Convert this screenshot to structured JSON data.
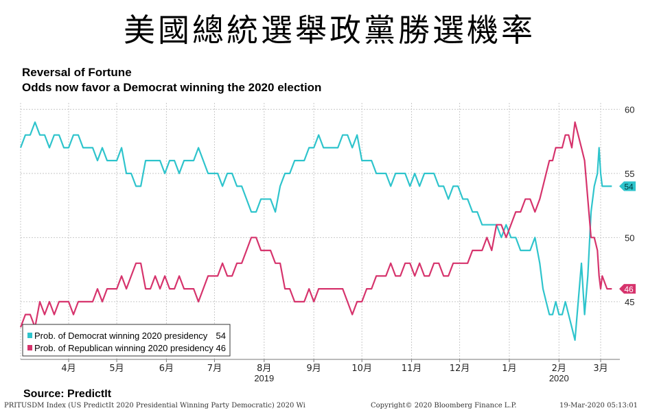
{
  "banner": {
    "title": "美國總統選舉政黨勝選機率"
  },
  "source": "Source: PredictIt",
  "footer": {
    "index": "PRITUSDM Index (US PredictIt 2020 Presidential Winning Party Democratic) 2020 Wi",
    "copyright": "Copyright© 2020 Bloomberg Finance L.P.",
    "timestamp": "19-Mar-2020 05:13:01"
  },
  "colors": {
    "democrat": "#2ec4cc",
    "republican": "#d6336c",
    "grid": "#c8c8c8"
  },
  "chart_data": {
    "type": "line",
    "title": "Reversal of Fortune",
    "subtitle": "Odds now favor a Democrat winning the 2020 election",
    "xlabel": "",
    "ylabel": "",
    "ylim": [
      40.5,
      60.5
    ],
    "y_ticks": [
      45,
      50,
      55,
      60
    ],
    "x_range": [
      "2019-03-16",
      "2020-03-24"
    ],
    "month_ticks": [
      {
        "date": "2019-04-15",
        "label": "4月"
      },
      {
        "date": "2019-05-15",
        "label": "5月"
      },
      {
        "date": "2019-06-15",
        "label": "6月"
      },
      {
        "date": "2019-07-15",
        "label": "7月"
      },
      {
        "date": "2019-08-15",
        "label": "8月"
      },
      {
        "date": "2019-09-15",
        "label": "9月"
      },
      {
        "date": "2019-10-15",
        "label": "10月"
      },
      {
        "date": "2019-11-15",
        "label": "11月"
      },
      {
        "date": "2019-12-15",
        "label": "12月"
      },
      {
        "date": "2020-01-15",
        "label": "1月"
      },
      {
        "date": "2020-02-15",
        "label": "2月"
      },
      {
        "date": "2020-03-12",
        "label": "3月"
      }
    ],
    "year_ticks": [
      {
        "date": "2019-08-15",
        "label": "2019"
      },
      {
        "date": "2020-02-15",
        "label": "2020"
      }
    ],
    "gridlines": [
      "2019-03-16",
      "2019-04-15",
      "2019-05-15",
      "2019-06-15",
      "2019-07-15",
      "2019-08-15",
      "2019-09-15",
      "2019-10-15",
      "2019-11-15",
      "2019-12-15",
      "2020-01-15",
      "2020-02-15",
      "2020-03-12"
    ],
    "series": [
      {
        "name": "Prob. of Democrat winning 2020 presidency",
        "last_value": "54",
        "color": "#2ec4cc",
        "points": [
          [
            "2019-03-16",
            57
          ],
          [
            "2019-03-19",
            58
          ],
          [
            "2019-03-22",
            58
          ],
          [
            "2019-03-25",
            59
          ],
          [
            "2019-03-28",
            58
          ],
          [
            "2019-03-31",
            58
          ],
          [
            "2019-04-03",
            57
          ],
          [
            "2019-04-06",
            58
          ],
          [
            "2019-04-09",
            58
          ],
          [
            "2019-04-12",
            57
          ],
          [
            "2019-04-15",
            57
          ],
          [
            "2019-04-18",
            58
          ],
          [
            "2019-04-21",
            58
          ],
          [
            "2019-04-24",
            57
          ],
          [
            "2019-04-27",
            57
          ],
          [
            "2019-04-30",
            57
          ],
          [
            "2019-05-03",
            56
          ],
          [
            "2019-05-06",
            57
          ],
          [
            "2019-05-09",
            56
          ],
          [
            "2019-05-12",
            56
          ],
          [
            "2019-05-15",
            56
          ],
          [
            "2019-05-18",
            57
          ],
          [
            "2019-05-21",
            55
          ],
          [
            "2019-05-24",
            55
          ],
          [
            "2019-05-27",
            54
          ],
          [
            "2019-05-30",
            54
          ],
          [
            "2019-06-02",
            56
          ],
          [
            "2019-06-05",
            56
          ],
          [
            "2019-06-08",
            56
          ],
          [
            "2019-06-11",
            56
          ],
          [
            "2019-06-14",
            55
          ],
          [
            "2019-06-17",
            56
          ],
          [
            "2019-06-20",
            56
          ],
          [
            "2019-06-23",
            55
          ],
          [
            "2019-06-26",
            56
          ],
          [
            "2019-06-29",
            56
          ],
          [
            "2019-07-02",
            56
          ],
          [
            "2019-07-05",
            57
          ],
          [
            "2019-07-08",
            56
          ],
          [
            "2019-07-11",
            55
          ],
          [
            "2019-07-14",
            55
          ],
          [
            "2019-07-17",
            55
          ],
          [
            "2019-07-20",
            54
          ],
          [
            "2019-07-23",
            55
          ],
          [
            "2019-07-26",
            55
          ],
          [
            "2019-07-29",
            54
          ],
          [
            "2019-08-01",
            54
          ],
          [
            "2019-08-04",
            53
          ],
          [
            "2019-08-07",
            52
          ],
          [
            "2019-08-10",
            52
          ],
          [
            "2019-08-13",
            53
          ],
          [
            "2019-08-16",
            53
          ],
          [
            "2019-08-19",
            53
          ],
          [
            "2019-08-22",
            52
          ],
          [
            "2019-08-25",
            54
          ],
          [
            "2019-08-28",
            55
          ],
          [
            "2019-08-31",
            55
          ],
          [
            "2019-09-03",
            56
          ],
          [
            "2019-09-06",
            56
          ],
          [
            "2019-09-09",
            56
          ],
          [
            "2019-09-12",
            57
          ],
          [
            "2019-09-15",
            57
          ],
          [
            "2019-09-18",
            58
          ],
          [
            "2019-09-21",
            57
          ],
          [
            "2019-09-24",
            57
          ],
          [
            "2019-09-27",
            57
          ],
          [
            "2019-09-30",
            57
          ],
          [
            "2019-10-03",
            58
          ],
          [
            "2019-10-06",
            58
          ],
          [
            "2019-10-09",
            57
          ],
          [
            "2019-10-12",
            58
          ],
          [
            "2019-10-15",
            56
          ],
          [
            "2019-10-18",
            56
          ],
          [
            "2019-10-21",
            56
          ],
          [
            "2019-10-24",
            55
          ],
          [
            "2019-10-27",
            55
          ],
          [
            "2019-10-30",
            55
          ],
          [
            "2019-11-02",
            54
          ],
          [
            "2019-11-05",
            55
          ],
          [
            "2019-11-08",
            55
          ],
          [
            "2019-11-11",
            55
          ],
          [
            "2019-11-14",
            54
          ],
          [
            "2019-11-17",
            55
          ],
          [
            "2019-11-20",
            54
          ],
          [
            "2019-11-23",
            55
          ],
          [
            "2019-11-26",
            55
          ],
          [
            "2019-11-29",
            55
          ],
          [
            "2019-12-02",
            54
          ],
          [
            "2019-12-05",
            54
          ],
          [
            "2019-12-08",
            53
          ],
          [
            "2019-12-11",
            54
          ],
          [
            "2019-12-14",
            54
          ],
          [
            "2019-12-17",
            53
          ],
          [
            "2019-12-20",
            53
          ],
          [
            "2019-12-23",
            52
          ],
          [
            "2019-12-26",
            52
          ],
          [
            "2019-12-29",
            51
          ],
          [
            "2020-01-01",
            51
          ],
          [
            "2020-01-04",
            51
          ],
          [
            "2020-01-07",
            51
          ],
          [
            "2020-01-10",
            50
          ],
          [
            "2020-01-13",
            51
          ],
          [
            "2020-01-16",
            50
          ],
          [
            "2020-01-19",
            50
          ],
          [
            "2020-01-22",
            49
          ],
          [
            "2020-01-25",
            49
          ],
          [
            "2020-01-28",
            49
          ],
          [
            "2020-01-31",
            50
          ],
          [
            "2020-02-03",
            48
          ],
          [
            "2020-02-05",
            46
          ],
          [
            "2020-02-07",
            45
          ],
          [
            "2020-02-09",
            44
          ],
          [
            "2020-02-11",
            44
          ],
          [
            "2020-02-13",
            45
          ],
          [
            "2020-02-15",
            44
          ],
          [
            "2020-02-17",
            44
          ],
          [
            "2020-02-19",
            45
          ],
          [
            "2020-02-21",
            44
          ],
          [
            "2020-02-23",
            43
          ],
          [
            "2020-02-25",
            42
          ],
          [
            "2020-02-27",
            45
          ],
          [
            "2020-02-29",
            48
          ],
          [
            "2020-03-02",
            44
          ],
          [
            "2020-03-04",
            47
          ],
          [
            "2020-03-06",
            52
          ],
          [
            "2020-03-08",
            54
          ],
          [
            "2020-03-10",
            55
          ],
          [
            "2020-03-11",
            57
          ],
          [
            "2020-03-12",
            55
          ],
          [
            "2020-03-13",
            54
          ],
          [
            "2020-03-16",
            54
          ],
          [
            "2020-03-19",
            54
          ]
        ]
      },
      {
        "name": "Prob. of Republican winning 2020 presidency",
        "last_value": "46",
        "color": "#d6336c",
        "points": [
          [
            "2019-03-16",
            43
          ],
          [
            "2019-03-19",
            44
          ],
          [
            "2019-03-22",
            44
          ],
          [
            "2019-03-25",
            43
          ],
          [
            "2019-03-28",
            45
          ],
          [
            "2019-03-31",
            44
          ],
          [
            "2019-04-03",
            45
          ],
          [
            "2019-04-06",
            44
          ],
          [
            "2019-04-09",
            45
          ],
          [
            "2019-04-12",
            45
          ],
          [
            "2019-04-15",
            45
          ],
          [
            "2019-04-18",
            44
          ],
          [
            "2019-04-21",
            45
          ],
          [
            "2019-04-24",
            45
          ],
          [
            "2019-04-27",
            45
          ],
          [
            "2019-04-30",
            45
          ],
          [
            "2019-05-03",
            46
          ],
          [
            "2019-05-06",
            45
          ],
          [
            "2019-05-09",
            46
          ],
          [
            "2019-05-12",
            46
          ],
          [
            "2019-05-15",
            46
          ],
          [
            "2019-05-18",
            47
          ],
          [
            "2019-05-21",
            46
          ],
          [
            "2019-05-24",
            47
          ],
          [
            "2019-05-27",
            48
          ],
          [
            "2019-05-30",
            48
          ],
          [
            "2019-06-02",
            46
          ],
          [
            "2019-06-05",
            46
          ],
          [
            "2019-06-08",
            47
          ],
          [
            "2019-06-11",
            46
          ],
          [
            "2019-06-14",
            47
          ],
          [
            "2019-06-17",
            46
          ],
          [
            "2019-06-20",
            46
          ],
          [
            "2019-06-23",
            47
          ],
          [
            "2019-06-26",
            46
          ],
          [
            "2019-06-29",
            46
          ],
          [
            "2019-07-02",
            46
          ],
          [
            "2019-07-05",
            45
          ],
          [
            "2019-07-08",
            46
          ],
          [
            "2019-07-11",
            47
          ],
          [
            "2019-07-14",
            47
          ],
          [
            "2019-07-17",
            47
          ],
          [
            "2019-07-20",
            48
          ],
          [
            "2019-07-23",
            47
          ],
          [
            "2019-07-26",
            47
          ],
          [
            "2019-07-29",
            48
          ],
          [
            "2019-08-01",
            48
          ],
          [
            "2019-08-04",
            49
          ],
          [
            "2019-08-07",
            50
          ],
          [
            "2019-08-10",
            50
          ],
          [
            "2019-08-13",
            49
          ],
          [
            "2019-08-16",
            49
          ],
          [
            "2019-08-19",
            49
          ],
          [
            "2019-08-22",
            48
          ],
          [
            "2019-08-25",
            48
          ],
          [
            "2019-08-28",
            46
          ],
          [
            "2019-08-31",
            46
          ],
          [
            "2019-09-03",
            45
          ],
          [
            "2019-09-06",
            45
          ],
          [
            "2019-09-09",
            45
          ],
          [
            "2019-09-12",
            46
          ],
          [
            "2019-09-15",
            45
          ],
          [
            "2019-09-18",
            46
          ],
          [
            "2019-09-21",
            46
          ],
          [
            "2019-09-24",
            46
          ],
          [
            "2019-09-27",
            46
          ],
          [
            "2019-09-30",
            46
          ],
          [
            "2019-10-03",
            46
          ],
          [
            "2019-10-06",
            45
          ],
          [
            "2019-10-09",
            44
          ],
          [
            "2019-10-12",
            45
          ],
          [
            "2019-10-15",
            45
          ],
          [
            "2019-10-18",
            46
          ],
          [
            "2019-10-21",
            46
          ],
          [
            "2019-10-24",
            47
          ],
          [
            "2019-10-27",
            47
          ],
          [
            "2019-10-30",
            47
          ],
          [
            "2019-11-02",
            48
          ],
          [
            "2019-11-05",
            47
          ],
          [
            "2019-11-08",
            47
          ],
          [
            "2019-11-11",
            48
          ],
          [
            "2019-11-14",
            48
          ],
          [
            "2019-11-17",
            47
          ],
          [
            "2019-11-20",
            48
          ],
          [
            "2019-11-23",
            47
          ],
          [
            "2019-11-26",
            47
          ],
          [
            "2019-11-29",
            48
          ],
          [
            "2019-12-02",
            48
          ],
          [
            "2019-12-05",
            47
          ],
          [
            "2019-12-08",
            47
          ],
          [
            "2019-12-11",
            48
          ],
          [
            "2019-12-14",
            48
          ],
          [
            "2019-12-17",
            48
          ],
          [
            "2019-12-20",
            48
          ],
          [
            "2019-12-23",
            49
          ],
          [
            "2019-12-26",
            49
          ],
          [
            "2019-12-29",
            49
          ],
          [
            "2020-01-01",
            50
          ],
          [
            "2020-01-04",
            49
          ],
          [
            "2020-01-07",
            51
          ],
          [
            "2020-01-10",
            51
          ],
          [
            "2020-01-13",
            50
          ],
          [
            "2020-01-16",
            51
          ],
          [
            "2020-01-19",
            52
          ],
          [
            "2020-01-22",
            52
          ],
          [
            "2020-01-25",
            53
          ],
          [
            "2020-01-28",
            53
          ],
          [
            "2020-01-31",
            52
          ],
          [
            "2020-02-03",
            53
          ],
          [
            "2020-02-05",
            54
          ],
          [
            "2020-02-07",
            55
          ],
          [
            "2020-02-09",
            56
          ],
          [
            "2020-02-11",
            56
          ],
          [
            "2020-02-13",
            57
          ],
          [
            "2020-02-15",
            57
          ],
          [
            "2020-02-17",
            57
          ],
          [
            "2020-02-19",
            58
          ],
          [
            "2020-02-21",
            58
          ],
          [
            "2020-02-23",
            57
          ],
          [
            "2020-02-25",
            59
          ],
          [
            "2020-02-27",
            58
          ],
          [
            "2020-02-29",
            57
          ],
          [
            "2020-03-02",
            56
          ],
          [
            "2020-03-04",
            53
          ],
          [
            "2020-03-06",
            50
          ],
          [
            "2020-03-08",
            50
          ],
          [
            "2020-03-10",
            49
          ],
          [
            "2020-03-11",
            47
          ],
          [
            "2020-03-12",
            46
          ],
          [
            "2020-03-13",
            47
          ],
          [
            "2020-03-16",
            46
          ],
          [
            "2020-03-19",
            46
          ]
        ]
      }
    ]
  }
}
